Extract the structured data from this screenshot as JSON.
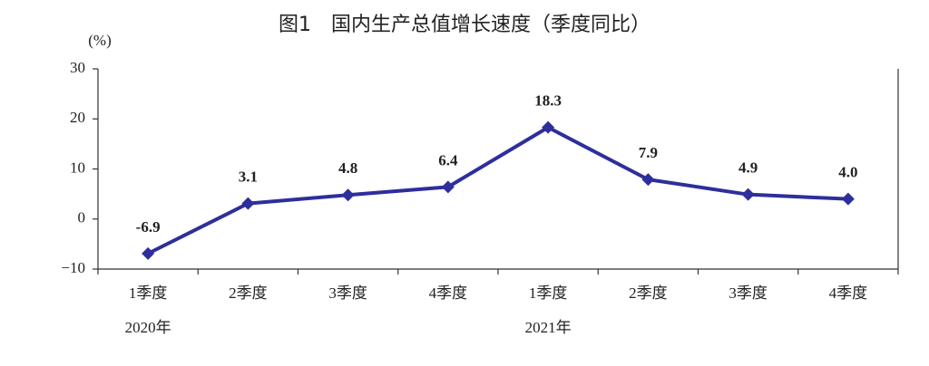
{
  "chart_data": {
    "type": "line",
    "title": "图1　国内生产总值增长速度（季度同比）",
    "y_unit": "(%)",
    "categories": [
      "1季度",
      "2季度",
      "3季度",
      "4季度",
      "1季度",
      "2季度",
      "3季度",
      "4季度"
    ],
    "category_years": [
      "2020年",
      null,
      null,
      null,
      "2021年",
      null,
      null,
      null
    ],
    "values": [
      -6.9,
      3.1,
      4.8,
      6.4,
      18.3,
      7.9,
      4.9,
      4.0
    ],
    "value_labels": [
      "-6.9",
      "3.1",
      "4.8",
      "6.4",
      "18.3",
      "7.9",
      "4.9",
      "4.0"
    ],
    "color": "#2e2e9c",
    "ylim": [
      -10,
      30
    ],
    "yticks": [
      {
        "value": -10,
        "label": "−10"
      },
      0,
      10,
      20,
      30
    ]
  }
}
